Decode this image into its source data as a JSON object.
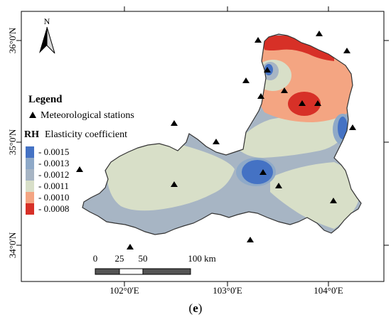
{
  "north_arrow": {
    "label": "N"
  },
  "lat_labels": [
    "36°0'N",
    "35°0'N",
    "34°0'N"
  ],
  "lon_labels": [
    "102°0'E",
    "103°0'E",
    "104°0'E"
  ],
  "legend": {
    "title": "Legend",
    "stations_label": "Meteorological stations",
    "rh_abbr": "RH",
    "rh_label": "Elasticity coefficient",
    "classes": [
      {
        "label": "- 0.0015",
        "color": "#4472c4"
      },
      {
        "label": "- 0.0013",
        "color": "#8ea9c8"
      },
      {
        "label": "- 0.0012",
        "color": "#a7b5c4"
      },
      {
        "label": "- 0.0011",
        "color": "#d8dfc8"
      },
      {
        "label": "- 0.0010",
        "color": "#f4a582"
      },
      {
        "label": "- 0.0008",
        "color": "#d73027"
      }
    ]
  },
  "scale_bar": {
    "ticks": [
      "0",
      "25",
      "50",
      "100 km"
    ]
  },
  "caption": {
    "open": "(",
    "letter": "e",
    "close": ")"
  },
  "colors": {
    "frame": "#000000",
    "boundary": "#333333",
    "station": "#000000"
  }
}
